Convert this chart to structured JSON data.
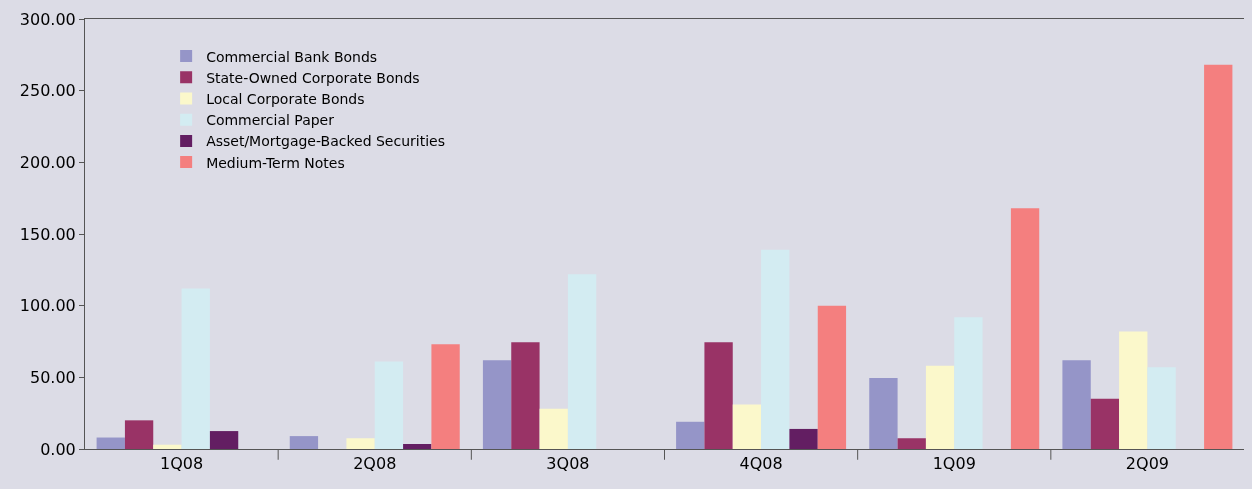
{
  "chart_data": {
    "type": "bar",
    "categories": [
      "1Q08",
      "2Q08",
      "3Q08",
      "4Q08",
      "1Q09",
      "2Q09"
    ],
    "series": [
      {
        "name": "Commercial Bank Bonds",
        "color": "#9595c8",
        "values": [
          8,
          9,
          62,
          19,
          49.5,
          62
        ]
      },
      {
        "name": "State-Owned Corporate Bonds",
        "color": "#993366",
        "values": [
          20,
          0,
          74.5,
          74.5,
          7.5,
          35
        ]
      },
      {
        "name": "Local Corporate Bonds",
        "color": "#fbf8cb",
        "values": [
          3,
          7.5,
          28,
          31,
          58,
          82
        ]
      },
      {
        "name": "Commercial Paper",
        "color": "#d3ecf2",
        "values": [
          112,
          61,
          122,
          139,
          92,
          57
        ]
      },
      {
        "name": "Asset/Mortgage-Backed Securities",
        "color": "#631e62",
        "values": [
          12.5,
          3.5,
          0,
          14,
          0,
          0
        ]
      },
      {
        "name": "Medium-Term Notes",
        "color": "#f47f7f",
        "values": [
          0,
          73,
          0,
          100,
          168,
          268
        ]
      }
    ],
    "ylim": [
      0,
      300
    ],
    "yticks": [
      {
        "value": 0,
        "label": "0.00"
      },
      {
        "value": 50,
        "label": "50.00"
      },
      {
        "value": 100,
        "label": "100.00"
      },
      {
        "value": 150,
        "label": "150.00"
      },
      {
        "value": 200,
        "label": "200.00"
      },
      {
        "value": 250,
        "label": "250.00"
      },
      {
        "value": 300,
        "label": "300.00"
      }
    ],
    "grid": false,
    "legend": "top left"
  }
}
